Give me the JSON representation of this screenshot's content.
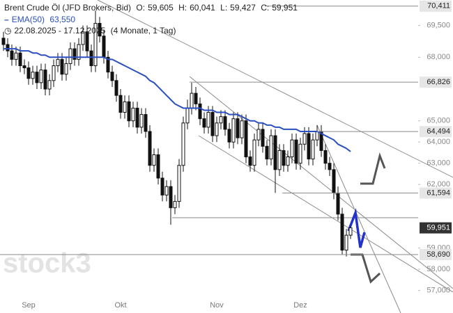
{
  "chart_data": {
    "type": "candlestick",
    "title": "Brent Crude Öl (JFD Brokers, Bid)",
    "ohlc_names": [
      "O:",
      "H:",
      "L:",
      "C:"
    ],
    "last_value_labels": [
      "59,605",
      "60,041",
      "59,427",
      "59,951"
    ],
    "date_range": "22.08.2025 - 17.12.2025",
    "period": "(4 Monate, 1 Tag)",
    "watermark": "stock3",
    "categories": [
      null,
      null,
      null,
      null,
      null,
      null,
      "Sep",
      null,
      null,
      null,
      null,
      null,
      null,
      null,
      null,
      null,
      null,
      null,
      null,
      null,
      null,
      null,
      null,
      null,
      null,
      null,
      null,
      null,
      "Okt",
      null,
      null,
      null,
      null,
      null,
      null,
      null,
      null,
      null,
      null,
      null,
      null,
      null,
      null,
      null,
      null,
      null,
      null,
      null,
      null,
      null,
      null,
      "Nov",
      null,
      null,
      null,
      null,
      null,
      null,
      null,
      null,
      null,
      null,
      null,
      null,
      null,
      null,
      null,
      null,
      null,
      null,
      null,
      "Dez",
      null,
      null,
      null,
      null,
      null,
      null,
      null,
      null,
      null,
      null,
      null,
      null
    ],
    "open": [
      68.9,
      68.6,
      68.3,
      67.9,
      68.2,
      67.6,
      67.5,
      67.0,
      67.3,
      66.8,
      67.4,
      66.5,
      66.9,
      67.6,
      67.9,
      67.2,
      67.7,
      68.4,
      67.9,
      68.6,
      69.2,
      68.3,
      67.6,
      69.6,
      69.0,
      68.0,
      67.3,
      66.9,
      66.2,
      65.4,
      65.9,
      65.0,
      65.6,
      64.7,
      65.3,
      64.5,
      62.9,
      63.4,
      62.3,
      61.5,
      61.9,
      60.9,
      61.2,
      62.9,
      64.9,
      65.6,
      66.3,
      65.8,
      65.1,
      64.7,
      65.4,
      64.3,
      64.9,
      65.2,
      64.6,
      64.0,
      65.1,
      64.2,
      65.0,
      63.3,
      62.9,
      64.1,
      64.6,
      63.8,
      63.2,
      64.3,
      62.7,
      63.6,
      62.9,
      63.3,
      64.1,
      63.0,
      63.9,
      64.4,
      63.2,
      64.1,
      64.5,
      63.6,
      63.0,
      62.7,
      61.6,
      60.6,
      58.9,
      59.605
    ],
    "high": [
      69.2,
      68.9,
      68.6,
      68.5,
      68.5,
      67.9,
      67.8,
      67.6,
      67.6,
      67.7,
      67.7,
      67.2,
      67.9,
      68.2,
      68.2,
      68.0,
      68.7,
      68.7,
      68.9,
      69.5,
      69.5,
      68.6,
      70.2,
      69.9,
      69.3,
      68.3,
      67.6,
      67.2,
      66.5,
      66.2,
      66.2,
      65.9,
      65.9,
      65.6,
      65.6,
      64.8,
      63.7,
      63.7,
      62.6,
      62.2,
      62.2,
      61.5,
      63.2,
      65.2,
      66.0,
      66.8,
      66.6,
      66.1,
      65.4,
      65.7,
      65.7,
      65.2,
      65.5,
      65.5,
      64.9,
      65.4,
      65.4,
      65.3,
      65.3,
      63.6,
      64.4,
      64.9,
      64.9,
      64.1,
      64.6,
      64.6,
      63.9,
      63.9,
      63.6,
      64.4,
      64.4,
      64.2,
      64.7,
      64.7,
      64.4,
      64.8,
      64.8,
      63.9,
      63.3,
      63.0,
      61.9,
      60.9,
      59.9,
      60.041
    ],
    "low": [
      68.3,
      68.0,
      67.6,
      67.6,
      67.3,
      67.2,
      66.7,
      66.7,
      66.5,
      66.5,
      66.2,
      66.2,
      66.6,
      67.3,
      66.9,
      66.9,
      67.4,
      67.6,
      67.6,
      68.3,
      68.0,
      67.3,
      67.3,
      68.7,
      67.7,
      67.0,
      66.6,
      65.9,
      65.1,
      65.1,
      64.7,
      64.7,
      64.4,
      64.4,
      64.2,
      62.6,
      62.6,
      62.0,
      61.2,
      61.2,
      60.1,
      60.6,
      60.9,
      62.6,
      64.6,
      65.3,
      65.5,
      64.8,
      64.4,
      64.4,
      64.0,
      64.0,
      64.6,
      64.3,
      63.7,
      63.7,
      63.9,
      63.9,
      63.0,
      62.6,
      62.6,
      63.8,
      63.5,
      62.9,
      62.9,
      61.6,
      62.4,
      62.6,
      62.6,
      63.0,
      62.7,
      62.7,
      63.6,
      62.9,
      62.9,
      63.8,
      63.3,
      62.7,
      62.4,
      61.3,
      60.3,
      58.69,
      58.6,
      59.427
    ],
    "close": [
      68.6,
      68.3,
      67.9,
      68.2,
      67.6,
      67.5,
      67.0,
      67.3,
      66.8,
      67.4,
      66.5,
      66.9,
      67.6,
      67.9,
      67.2,
      67.7,
      68.4,
      67.9,
      68.6,
      69.2,
      68.3,
      67.6,
      69.6,
      69.0,
      68.0,
      67.3,
      66.9,
      66.2,
      65.4,
      65.9,
      65.0,
      65.6,
      64.7,
      65.3,
      64.5,
      62.9,
      63.4,
      62.3,
      61.5,
      61.9,
      60.9,
      61.2,
      62.9,
      64.9,
      65.6,
      66.3,
      65.8,
      65.1,
      64.7,
      65.4,
      64.3,
      64.9,
      65.2,
      64.6,
      64.0,
      65.1,
      64.2,
      65.0,
      63.3,
      62.9,
      64.1,
      64.6,
      63.8,
      63.2,
      64.3,
      62.7,
      63.6,
      62.9,
      63.3,
      64.1,
      63.0,
      63.9,
      64.4,
      63.2,
      64.1,
      64.5,
      63.6,
      63.0,
      62.7,
      61.6,
      60.6,
      58.9,
      59.605,
      59.951
    ],
    "series": [
      {
        "name": "EMA(50)",
        "color": "#2a4fbf",
        "value_label": "63,550",
        "values": [
          68.4,
          68.4,
          68.4,
          68.4,
          68.3,
          68.3,
          68.3,
          68.2,
          68.2,
          68.1,
          68.1,
          68.0,
          68.0,
          68.0,
          68.0,
          68.0,
          68.0,
          68.0,
          68.0,
          68.0,
          68.0,
          68.0,
          68.0,
          68.0,
          68.0,
          67.9,
          67.9,
          67.8,
          67.7,
          67.6,
          67.5,
          67.4,
          67.3,
          67.2,
          67.1,
          66.9,
          66.8,
          66.6,
          66.4,
          66.2,
          66.0,
          65.8,
          65.7,
          65.6,
          65.6,
          65.6,
          65.6,
          65.6,
          65.5,
          65.5,
          65.5,
          65.4,
          65.4,
          65.4,
          65.3,
          65.3,
          65.3,
          65.2,
          65.1,
          65.0,
          65.0,
          64.9,
          64.9,
          64.8,
          64.8,
          64.7,
          64.7,
          64.6,
          64.6,
          64.6,
          64.6,
          64.5,
          64.5,
          64.5,
          64.5,
          64.5,
          64.4,
          64.3,
          64.2,
          64.1,
          63.9,
          63.8,
          63.7,
          63.55
        ]
      }
    ],
    "ylim": [
      56.1,
      70.7
    ],
    "yticks": [
      {
        "value": 69.5,
        "label": "69,500"
      },
      {
        "value": 68,
        "label": "68,000"
      },
      {
        "value": 65,
        "label": "65,000"
      },
      {
        "value": 64,
        "label": "64,000"
      },
      {
        "value": 63,
        "label": "63,000"
      },
      {
        "value": 62,
        "label": "62,000"
      },
      {
        "value": 59,
        "label": "59,000"
      },
      {
        "value": 58,
        "label": "58,000"
      },
      {
        "value": 57,
        "label": "57,000"
      }
    ],
    "levels": [
      {
        "value": 70.411,
        "label": "70,411"
      },
      {
        "value": 66.826,
        "label": "66,826"
      },
      {
        "value": 64.494,
        "label": "64,494"
      },
      {
        "value": 61.594,
        "label": "61,594"
      },
      {
        "value": 58.69,
        "label": "58,690"
      }
    ]
  }
}
